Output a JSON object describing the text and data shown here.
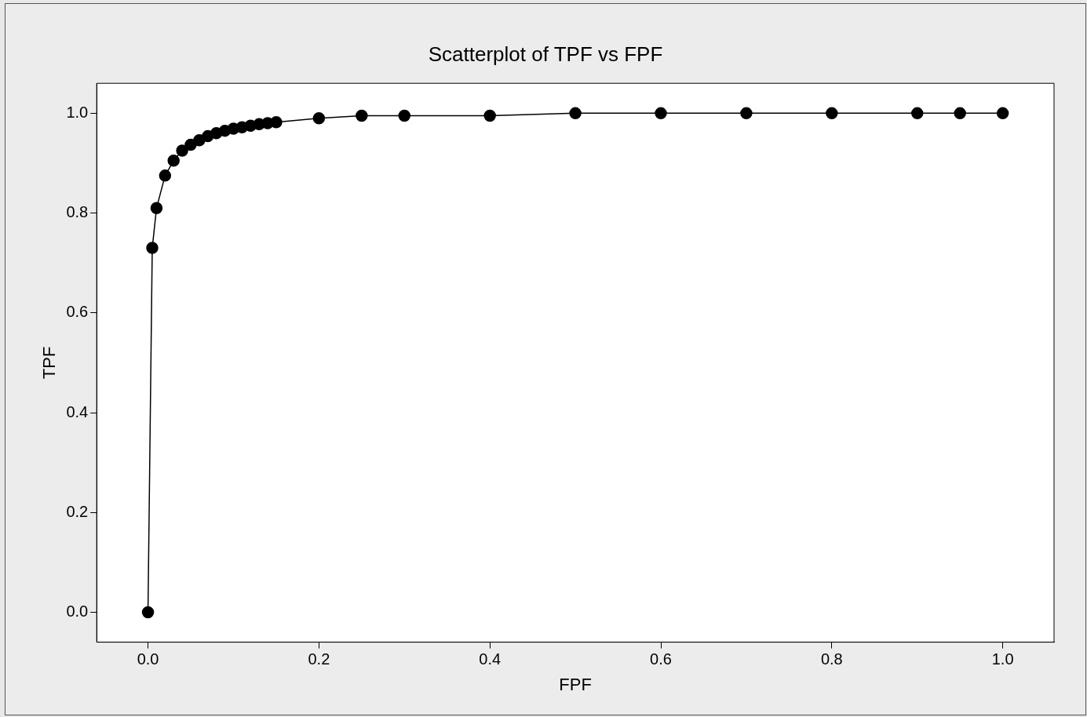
{
  "chart_data": {
    "type": "line",
    "title": "Scatterplot of TPF vs FPF",
    "xlabel": "FPF",
    "ylabel": "TPF",
    "x": [
      0,
      0.005,
      0.01,
      0.02,
      0.03,
      0.04,
      0.05,
      0.06,
      0.07,
      0.08,
      0.09,
      0.1,
      0.11,
      0.12,
      0.13,
      0.14,
      0.15,
      0.2,
      0.25,
      0.3,
      0.4,
      0.5,
      0.6,
      0.7,
      0.8,
      0.9,
      0.95,
      1.0
    ],
    "series": [
      {
        "color": "#000000",
        "values": [
          0,
          0.73,
          0.81,
          0.875,
          0.905,
          0.925,
          0.937,
          0.946,
          0.954,
          0.96,
          0.965,
          0.969,
          0.972,
          0.975,
          0.978,
          0.98,
          0.982,
          0.99,
          0.995,
          0.995,
          0.995,
          1.0,
          1.0,
          1.0,
          1.0,
          1.0,
          1.0,
          1.0
        ]
      }
    ],
    "xlim": [
      -0.06,
      1.06
    ],
    "ylim": [
      -0.06,
      1.06
    ],
    "xticks": [
      {
        "value": 0,
        "label": "0.0"
      },
      {
        "value": 0.2,
        "label": "0.2"
      },
      {
        "value": 0.4,
        "label": "0.4"
      },
      {
        "value": 0.6,
        "label": "0.6"
      },
      {
        "value": 0.8,
        "label": "0.8"
      },
      {
        "value": 1,
        "label": "1.0"
      }
    ],
    "yticks": [
      {
        "value": 0,
        "label": "0.0"
      },
      {
        "value": 0.2,
        "label": "0.2"
      },
      {
        "value": 0.4,
        "label": "0.4"
      },
      {
        "value": 0.6,
        "label": "0.6"
      },
      {
        "value": 0.8,
        "label": "0.8"
      },
      {
        "value": 1,
        "label": "1.0"
      }
    ],
    "grid": false,
    "legend": false,
    "marker": "circle",
    "line_style": "solid"
  }
}
